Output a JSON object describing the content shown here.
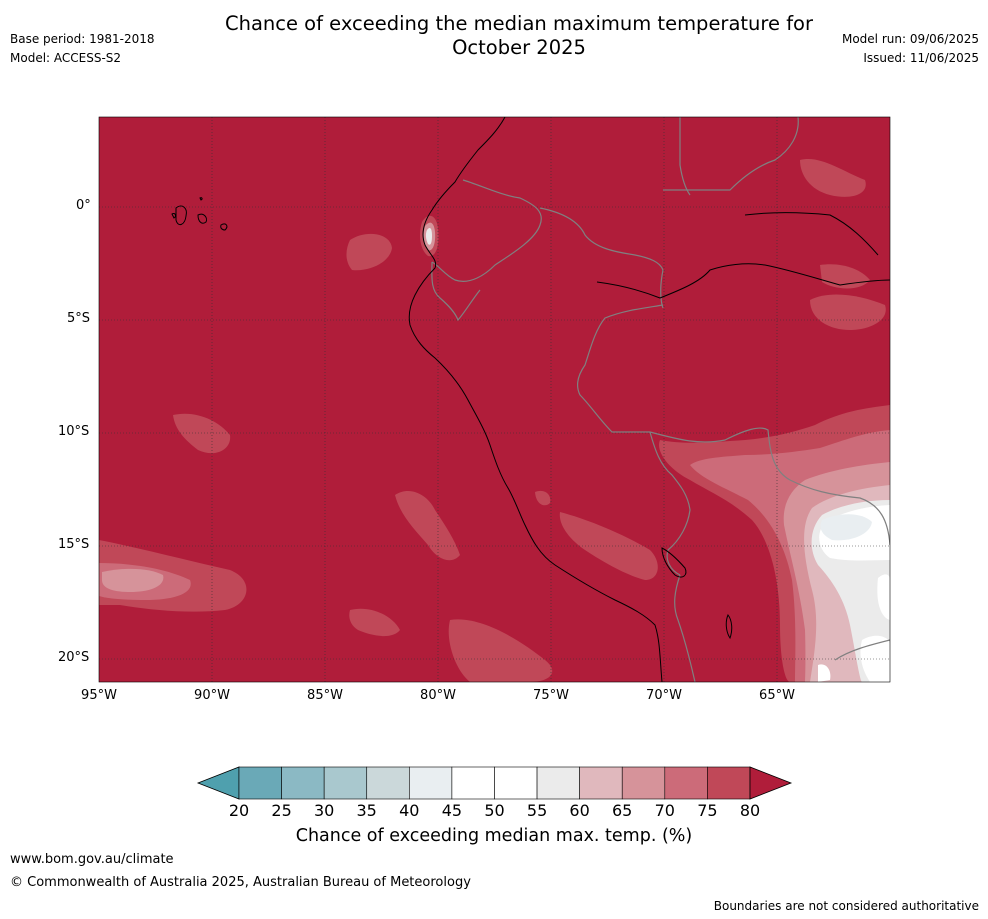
{
  "header": {
    "title": "Chance of exceeding the median maximum temperature for October 2025",
    "base_period": "Base period: 1981-2018",
    "model": "Model: ACCESS-S2",
    "model_run": "Model run: 09/06/2025",
    "issued": "Issued: 11/06/2025"
  },
  "map": {
    "lat_labels": [
      "0°",
      "5°S",
      "10°S",
      "15°S",
      "20°S"
    ],
    "lon_labels": [
      "95°W",
      "90°W",
      "85°W",
      "80°W",
      "75°W",
      "70°W",
      "65°W"
    ],
    "colors": {
      "c80": "#b01d3a",
      "c75": "#c04858",
      "c70": "#cc6b79",
      "c65": "#d6939a",
      "c60": "#e0b8bd",
      "c55": "#ebebeb",
      "c50": "#ffffff",
      "c45": "#e9eef1",
      "coast": "#000000",
      "border": "#808080"
    }
  },
  "colorbar": {
    "labels": [
      "20",
      "25",
      "30",
      "35",
      "40",
      "45",
      "50",
      "55",
      "60",
      "65",
      "70",
      "75",
      "80"
    ],
    "colors": [
      "#6aa9b7",
      "#8bb9c4",
      "#a9c8ce",
      "#cbd8da",
      "#e9eef1",
      "#ffffff",
      "#ffffff",
      "#ebebeb",
      "#e0b8bd",
      "#d6939a",
      "#cc6b79",
      "#c04858"
    ],
    "low_color": "#4fa0ae",
    "high_color": "#b01d3a",
    "title": "Chance of exceeding median max. temp. (%)"
  },
  "footer": {
    "url": "www.bom.gov.au/climate",
    "copyright": "© Commonwealth of Australia 2025, Australian Bureau of Meteorology",
    "note": "Boundaries are not considered authoritative"
  }
}
